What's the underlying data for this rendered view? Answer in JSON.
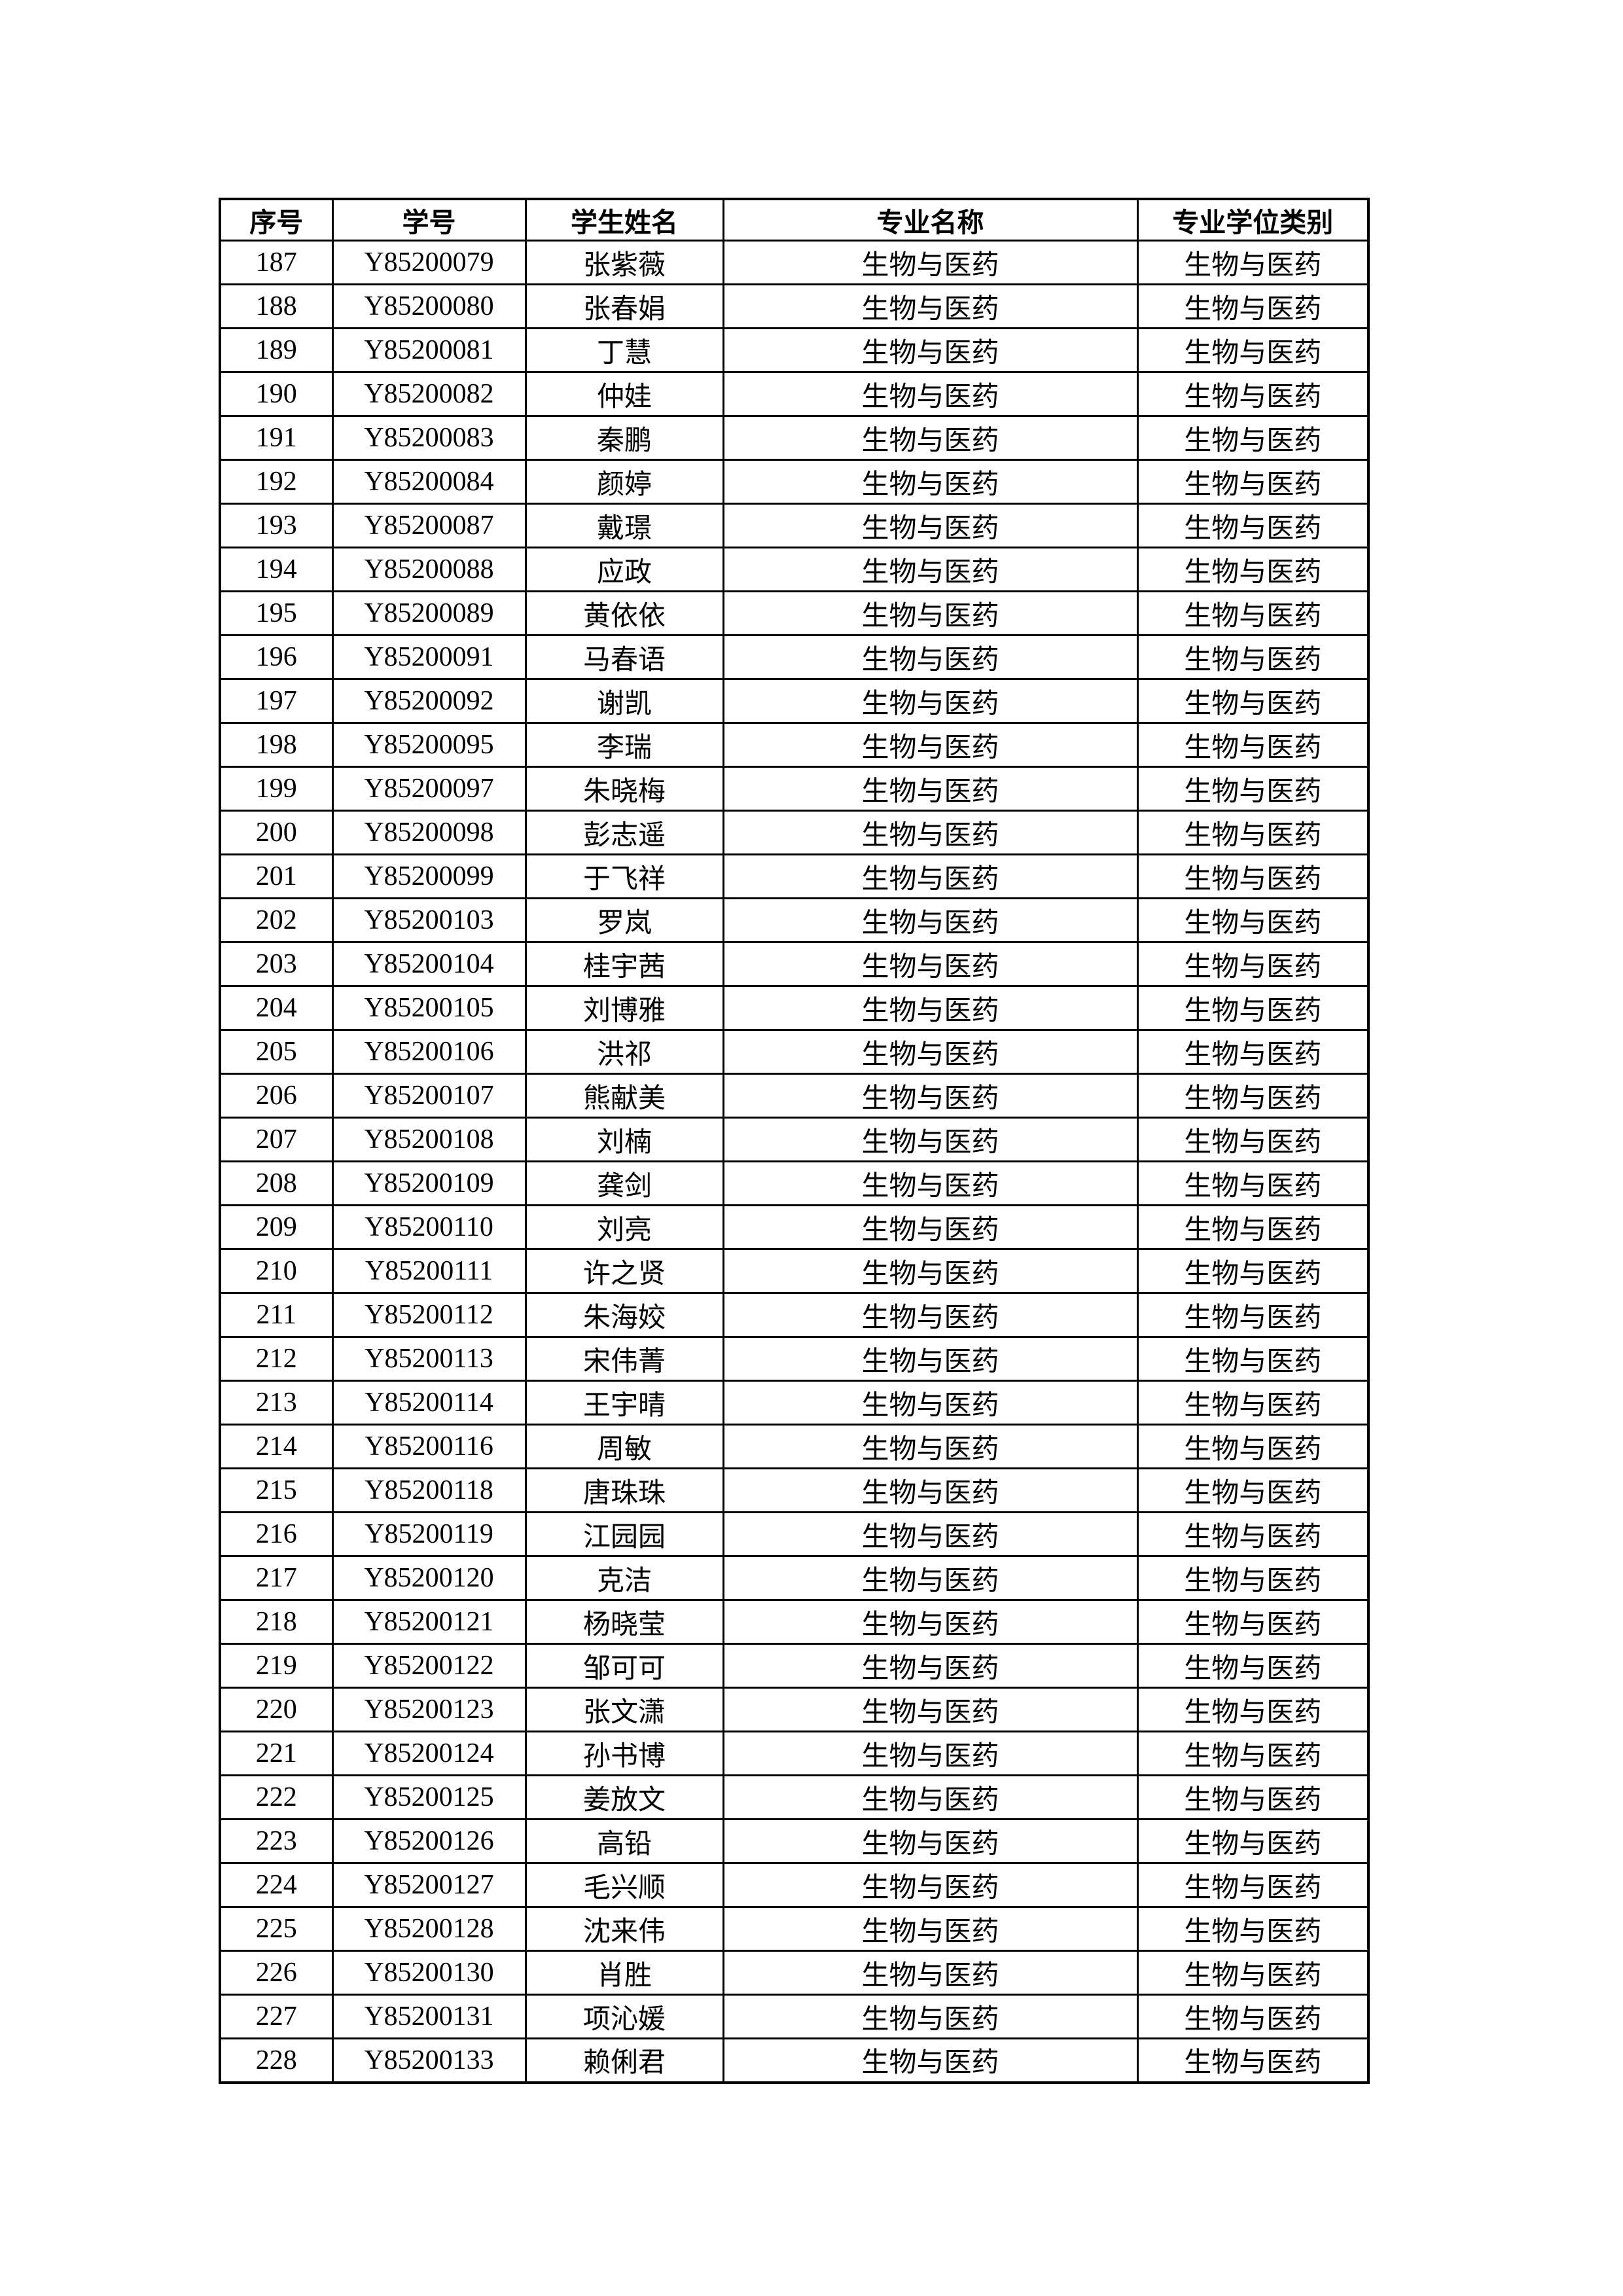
{
  "table": {
    "headers": [
      "序号",
      "学号",
      "学生姓名",
      "专业名称",
      "专业学位类别"
    ],
    "rows": [
      [
        "187",
        "Y85200079",
        "张紫薇",
        "生物与医药",
        "生物与医药"
      ],
      [
        "188",
        "Y85200080",
        "张春娟",
        "生物与医药",
        "生物与医药"
      ],
      [
        "189",
        "Y85200081",
        "丁慧",
        "生物与医药",
        "生物与医药"
      ],
      [
        "190",
        "Y85200082",
        "仲娃",
        "生物与医药",
        "生物与医药"
      ],
      [
        "191",
        "Y85200083",
        "秦鹏",
        "生物与医药",
        "生物与医药"
      ],
      [
        "192",
        "Y85200084",
        "颜婷",
        "生物与医药",
        "生物与医药"
      ],
      [
        "193",
        "Y85200087",
        "戴璟",
        "生物与医药",
        "生物与医药"
      ],
      [
        "194",
        "Y85200088",
        "应政",
        "生物与医药",
        "生物与医药"
      ],
      [
        "195",
        "Y85200089",
        "黄依依",
        "生物与医药",
        "生物与医药"
      ],
      [
        "196",
        "Y85200091",
        "马春语",
        "生物与医药",
        "生物与医药"
      ],
      [
        "197",
        "Y85200092",
        "谢凯",
        "生物与医药",
        "生物与医药"
      ],
      [
        "198",
        "Y85200095",
        "李瑞",
        "生物与医药",
        "生物与医药"
      ],
      [
        "199",
        "Y85200097",
        "朱晓梅",
        "生物与医药",
        "生物与医药"
      ],
      [
        "200",
        "Y85200098",
        "彭志遥",
        "生物与医药",
        "生物与医药"
      ],
      [
        "201",
        "Y85200099",
        "于飞祥",
        "生物与医药",
        "生物与医药"
      ],
      [
        "202",
        "Y85200103",
        "罗岚",
        "生物与医药",
        "生物与医药"
      ],
      [
        "203",
        "Y85200104",
        "桂宇茜",
        "生物与医药",
        "生物与医药"
      ],
      [
        "204",
        "Y85200105",
        "刘博雅",
        "生物与医药",
        "生物与医药"
      ],
      [
        "205",
        "Y85200106",
        "洪祁",
        "生物与医药",
        "生物与医药"
      ],
      [
        "206",
        "Y85200107",
        "熊献美",
        "生物与医药",
        "生物与医药"
      ],
      [
        "207",
        "Y85200108",
        "刘楠",
        "生物与医药",
        "生物与医药"
      ],
      [
        "208",
        "Y85200109",
        "龚剑",
        "生物与医药",
        "生物与医药"
      ],
      [
        "209",
        "Y85200110",
        "刘亮",
        "生物与医药",
        "生物与医药"
      ],
      [
        "210",
        "Y85200111",
        "许之贤",
        "生物与医药",
        "生物与医药"
      ],
      [
        "211",
        "Y85200112",
        "朱海姣",
        "生物与医药",
        "生物与医药"
      ],
      [
        "212",
        "Y85200113",
        "宋伟菁",
        "生物与医药",
        "生物与医药"
      ],
      [
        "213",
        "Y85200114",
        "王宇晴",
        "生物与医药",
        "生物与医药"
      ],
      [
        "214",
        "Y85200116",
        "周敏",
        "生物与医药",
        "生物与医药"
      ],
      [
        "215",
        "Y85200118",
        "唐珠珠",
        "生物与医药",
        "生物与医药"
      ],
      [
        "216",
        "Y85200119",
        "江园园",
        "生物与医药",
        "生物与医药"
      ],
      [
        "217",
        "Y85200120",
        "克洁",
        "生物与医药",
        "生物与医药"
      ],
      [
        "218",
        "Y85200121",
        "杨晓莹",
        "生物与医药",
        "生物与医药"
      ],
      [
        "219",
        "Y85200122",
        "邹可可",
        "生物与医药",
        "生物与医药"
      ],
      [
        "220",
        "Y85200123",
        "张文潇",
        "生物与医药",
        "生物与医药"
      ],
      [
        "221",
        "Y85200124",
        "孙书博",
        "生物与医药",
        "生物与医药"
      ],
      [
        "222",
        "Y85200125",
        "姜放文",
        "生物与医药",
        "生物与医药"
      ],
      [
        "223",
        "Y85200126",
        "高铅",
        "生物与医药",
        "生物与医药"
      ],
      [
        "224",
        "Y85200127",
        "毛兴顺",
        "生物与医药",
        "生物与医药"
      ],
      [
        "225",
        "Y85200128",
        "沈来伟",
        "生物与医药",
        "生物与医药"
      ],
      [
        "226",
        "Y85200130",
        "肖胜",
        "生物与医药",
        "生物与医药"
      ],
      [
        "227",
        "Y85200131",
        "项沁媛",
        "生物与医药",
        "生物与医药"
      ],
      [
        "228",
        "Y85200133",
        "赖俐君",
        "生物与医药",
        "生物与医药"
      ]
    ]
  }
}
